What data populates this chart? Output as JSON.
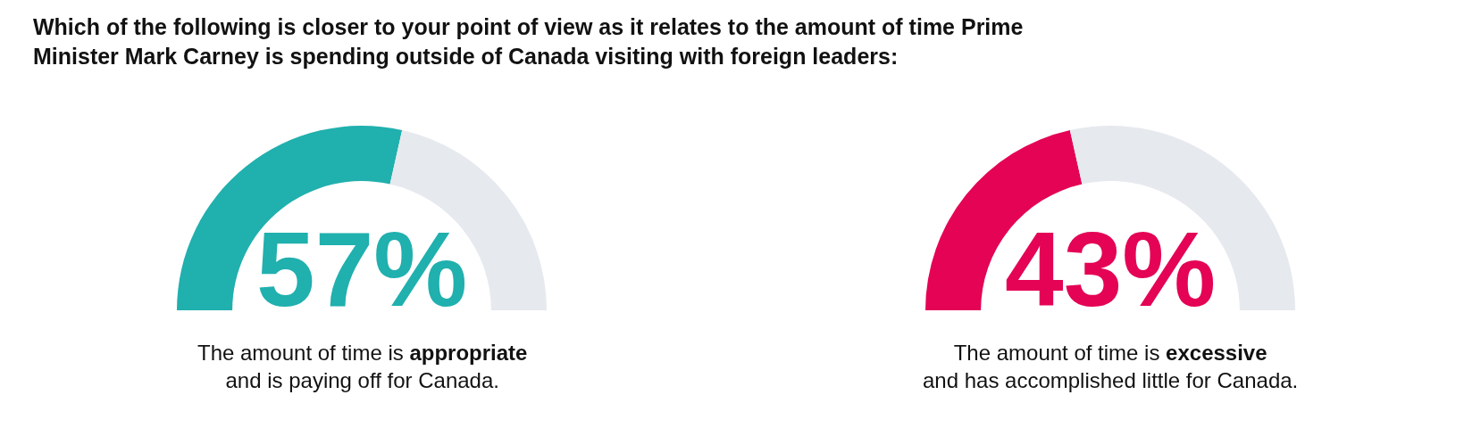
{
  "chart_data": [
    {
      "type": "donut",
      "title": "Which of the following is closer to your point of view as it relates to the amount of time Prime Minister Mark Carney is spending outside of Canada visiting with foreign leaders:",
      "categories": [
        null,
        null
      ],
      "values": [
        57,
        43
      ],
      "colors": [
        "#20b0ae",
        "#e6e9ee"
      ],
      "value_labels": [
        "57%",
        null
      ],
      "annotations": [
        "The amount of time is",
        "appropriate",
        "and is paying off for Canada."
      ]
    },
    {
      "type": "donut",
      "categories": [
        null,
        null
      ],
      "values": [
        43,
        57
      ],
      "colors": [
        "#e40355",
        "#e6e9ee"
      ],
      "value_labels": [
        "43%",
        null
      ],
      "annotations": [
        "The amount of time is",
        "excessive",
        "and has accomplished little for Canada."
      ]
    }
  ]
}
